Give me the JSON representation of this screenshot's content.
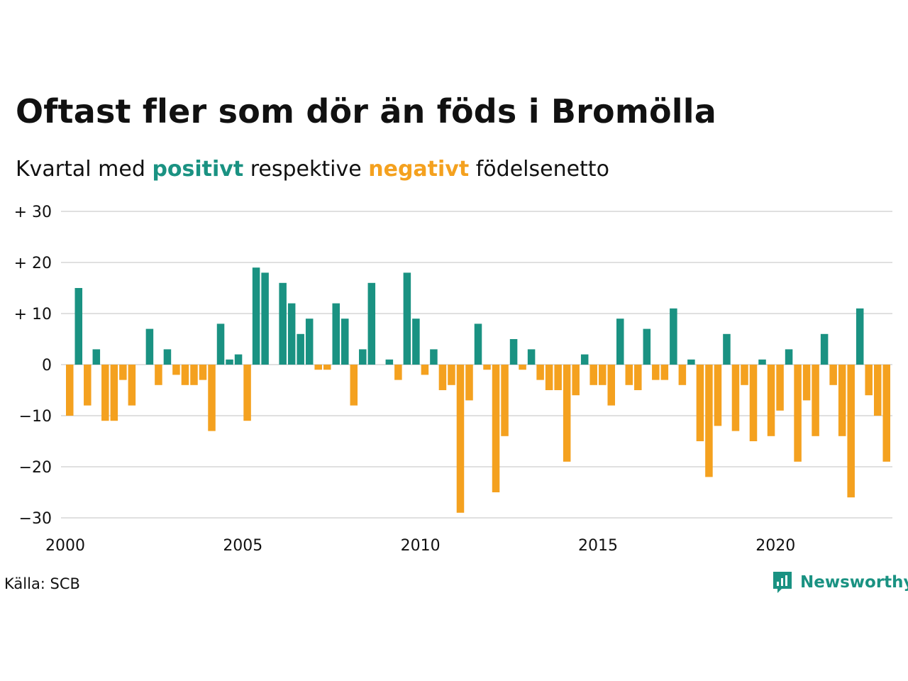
{
  "title": "Oftast fler som dör än föds i Bromölla",
  "subtitle": {
    "prefix": "Kvartal med",
    "positive": "positivt",
    "middle": "respektive",
    "negative": "negativt",
    "suffix": "födelsenetto"
  },
  "source": "Källa: SCB",
  "brand": {
    "name": "Newsworthy",
    "icon": "bar-chart-speech-icon"
  },
  "colors": {
    "positive": "#1a9282",
    "negative": "#f4a11f",
    "grid": "#e0e0e0",
    "text": "#111111"
  },
  "chart_data": {
    "type": "bar",
    "x_axis": {
      "ticks": [
        2000,
        2005,
        2010,
        2015,
        2020
      ],
      "labels": [
        "2000",
        "2005",
        "2010",
        "2015",
        "2020"
      ],
      "range": [
        2000,
        2023.25
      ]
    },
    "y_axis": {
      "ticks": [
        30,
        20,
        10,
        0,
        -10,
        -20,
        -30
      ],
      "labels": [
        "+ 30",
        "+ 20",
        "+ 10",
        "0",
        "−10",
        "−20",
        "−30"
      ],
      "ylim": [
        -30,
        30
      ]
    },
    "grid": true,
    "start_year": 2000,
    "period": "quarter",
    "values": [
      -10,
      15,
      -8,
      3,
      -11,
      -11,
      -3,
      -8,
      0,
      7,
      -4,
      3,
      -2,
      -4,
      -4,
      -3,
      -13,
      8,
      1,
      2,
      -11,
      19,
      18,
      0,
      16,
      12,
      6,
      9,
      -1,
      -1,
      12,
      9,
      -8,
      3,
      16,
      0,
      1,
      -3,
      18,
      9,
      -2,
      3,
      -5,
      -4,
      -29,
      -7,
      8,
      -1,
      -25,
      -14,
      5,
      -1,
      3,
      -3,
      -5,
      -5,
      -19,
      -6,
      2,
      -4,
      -4,
      -8,
      9,
      -4,
      -5,
      7,
      -3,
      -3,
      11,
      -4,
      1,
      -15,
      -22,
      -12,
      6,
      -13,
      -4,
      -15,
      1,
      -14,
      -9,
      3,
      -19,
      -7,
      -14,
      6,
      -4,
      -14,
      -26,
      11,
      -6,
      -10,
      -19
    ]
  }
}
